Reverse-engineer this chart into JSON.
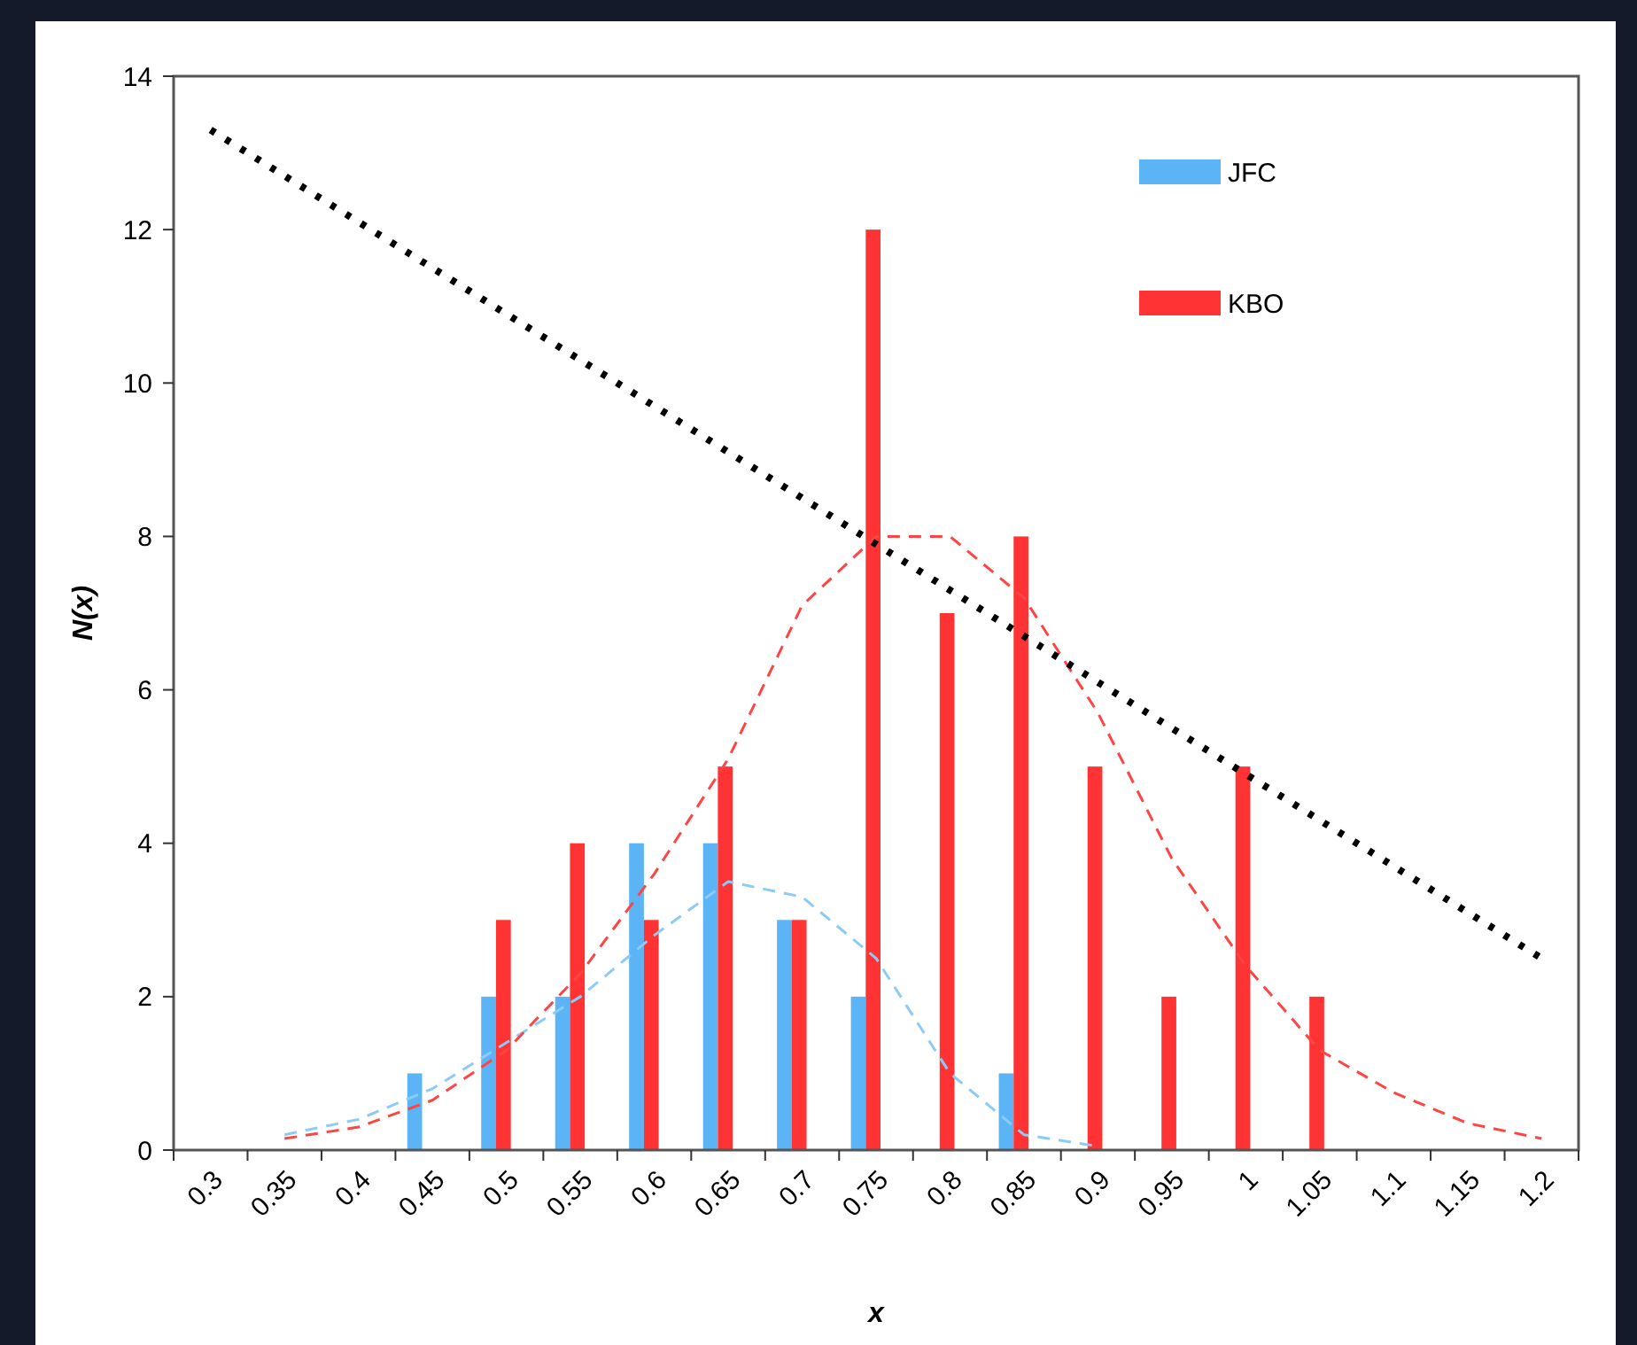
{
  "chart_data": {
    "type": "bar",
    "xlabel": "x",
    "ylabel": "N(x)",
    "categories": [
      "0.3",
      "0.35",
      "0.4",
      "0.45",
      "0.5",
      "0.55",
      "0.6",
      "0.65",
      "0.7",
      "0.75",
      "0.8",
      "0.85",
      "0.9",
      "0.95",
      "1",
      "1.05",
      "1.1",
      "1.15",
      "1.2"
    ],
    "series": [
      {
        "name": "JFC",
        "color": "#5ab4f5",
        "values": [
          null,
          null,
          null,
          1,
          2,
          2,
          4,
          4,
          3,
          2,
          null,
          1,
          null,
          null,
          null,
          null,
          null,
          null,
          null
        ]
      },
      {
        "name": "KBO",
        "color": "#ff3333",
        "values": [
          null,
          null,
          null,
          null,
          3,
          4,
          3,
          5,
          3,
          12,
          7,
          8,
          5,
          2,
          5,
          2,
          null,
          null,
          null
        ]
      },
      {
        "type": "line",
        "color": "#8ccbf7",
        "line_style": "dashed",
        "values": [
          null,
          0.2,
          0.4,
          0.8,
          1.4,
          2.0,
          2.8,
          3.5,
          3.3,
          2.5,
          1.0,
          0.2,
          0.05,
          null,
          null,
          null,
          null,
          null,
          null
        ]
      },
      {
        "type": "line",
        "color": "#ff4444",
        "line_style": "dashed",
        "values": [
          null,
          0.15,
          0.3,
          0.65,
          1.3,
          2.3,
          3.6,
          5.1,
          7.1,
          8.0,
          8.0,
          7.2,
          5.7,
          3.8,
          2.4,
          1.3,
          0.75,
          0.35,
          0.15
        ]
      },
      {
        "type": "line",
        "color": "#000000",
        "line_style": "dotted",
        "values": [
          13.3,
          12.7,
          12.1,
          11.5,
          10.9,
          10.3,
          9.7,
          9.1,
          8.5,
          7.9,
          7.3,
          6.7,
          6.1,
          5.5,
          4.9,
          4.3,
          3.7,
          3.1,
          2.5
        ]
      }
    ],
    "ylim": [
      0,
      14
    ],
    "yticks": [
      0,
      2,
      4,
      6,
      8,
      10,
      12,
      14
    ],
    "grid": false,
    "legend": "top right"
  }
}
